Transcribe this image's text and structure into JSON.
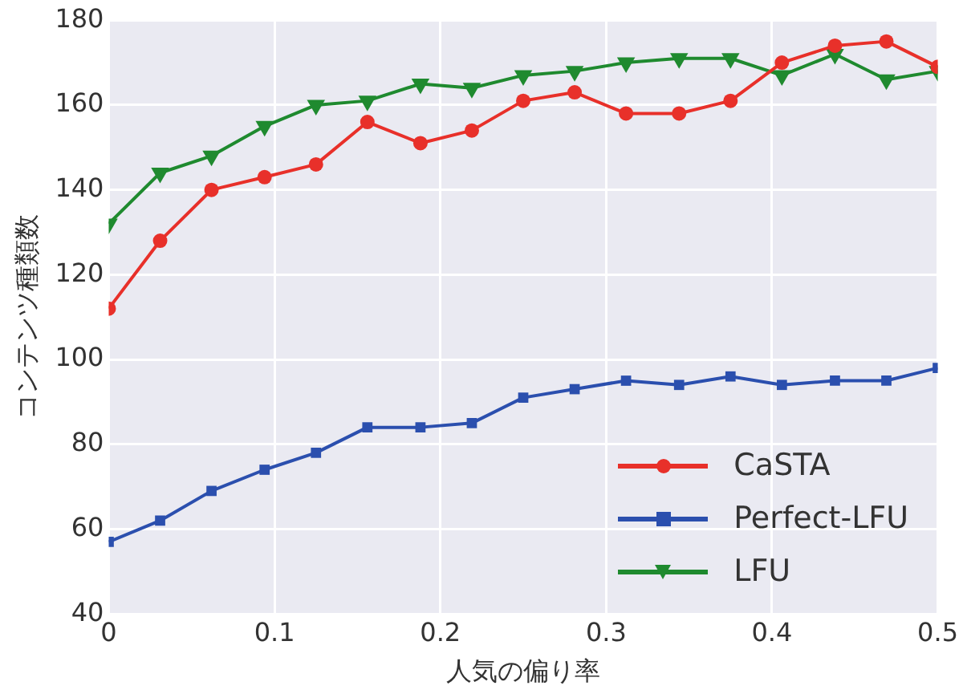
{
  "chart_data": {
    "type": "line",
    "xlabel": "人気の偏り率",
    "ylabel": "コンテンツ種類数",
    "x": [
      0,
      0.031,
      0.062,
      0.094,
      0.125,
      0.156,
      0.188,
      0.219,
      0.25,
      0.281,
      0.312,
      0.344,
      0.375,
      0.406,
      0.438,
      0.469,
      0.5
    ],
    "series": [
      {
        "name": "CaSTA",
        "color": "#e8302a",
        "marker": "circle",
        "values": [
          112,
          128,
          140,
          143,
          146,
          156,
          151,
          154,
          161,
          163,
          158,
          158,
          161,
          170,
          174,
          175,
          169
        ]
      },
      {
        "name": "Perfect-LFU",
        "color": "#2b4fae",
        "marker": "square",
        "values": [
          57,
          62,
          69,
          74,
          78,
          84,
          84,
          85,
          91,
          93,
          95,
          94,
          96,
          94,
          95,
          95,
          98
        ]
      },
      {
        "name": "LFU",
        "color": "#1f8a2f",
        "marker": "triangle",
        "values": [
          132,
          144,
          148,
          155,
          160,
          161,
          165,
          164,
          167,
          168,
          170,
          171,
          171,
          167,
          172,
          166,
          168
        ]
      }
    ],
    "xlim": [
      0,
      0.5
    ],
    "xticks": [
      0,
      0.1,
      0.2,
      0.3,
      0.4,
      0.5
    ],
    "ylim": [
      40,
      180
    ],
    "yticks": [
      40,
      60,
      80,
      100,
      120,
      140,
      160,
      180
    ],
    "grid": true,
    "legend": "bottom right",
    "line_style": "solid"
  }
}
